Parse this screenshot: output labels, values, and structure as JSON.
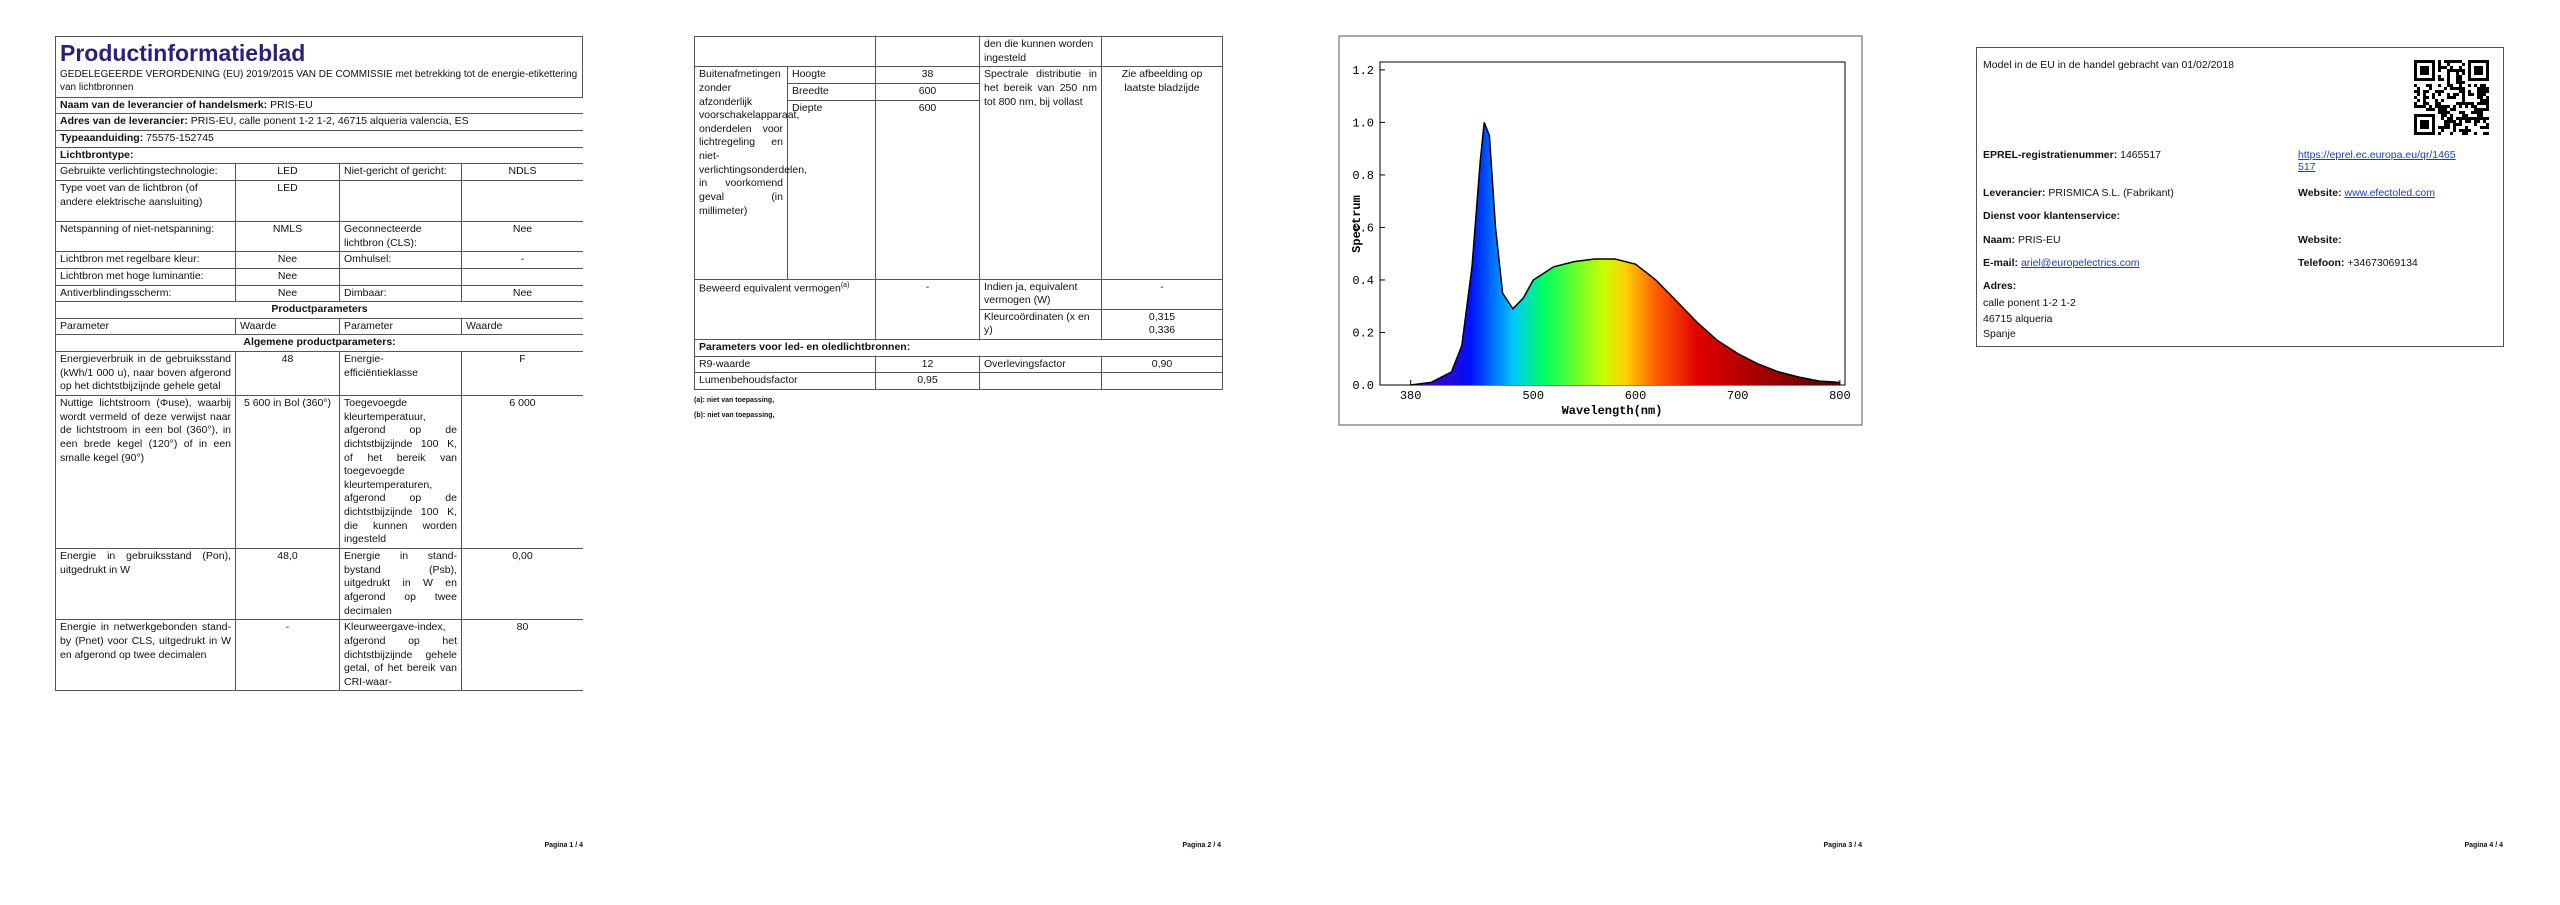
{
  "page1": {
    "title": "Productinformatieblad",
    "regulation": "GEDELEGEERDE VERORDENING (EU) 2019/2015 VAN DE COMMISSIE met betrekking tot de energie-etikettering van lichtbronnen",
    "supplier_label": "Naam van de leverancier of handelsmerk:",
    "supplier": "PRIS-EU",
    "address_label": "Adres van de leverancier:",
    "address": "PRIS-EU, calle ponent 1-2 1-2, 46715 alqueria valencia, ES",
    "model_label": "Typeaanduiding:",
    "model": "75575-152745",
    "light_source_type": "Lichtbrontype:",
    "rows": [
      [
        "Gebruikte verlichtingstechnologie:",
        "LED",
        "Niet-gericht of gericht:",
        "NDLS"
      ],
      [
        "Type voet van de lichtbron (of andere elektrische aansluiting)",
        "LED"
      ],
      [
        "Netspanning of niet-netspanning:",
        "NMLS",
        "Geconnecteerde lichtbron (CLS):",
        "Nee"
      ],
      [
        "Lichtbron met regelbare kleur:",
        "Nee",
        "Omhulsel:",
        "-"
      ],
      [
        "Lichtbron met hoge luminantie:",
        "Nee"
      ],
      [
        "Antiverblindingsscherm:",
        "Nee",
        "Dimbaar:",
        "Nee"
      ]
    ],
    "product_parameters": "Productparameters",
    "header": [
      "Parameter",
      "Waarde",
      "Parameter",
      "Waarde"
    ],
    "general_parameters": "Algemene productparameters:",
    "params": [
      [
        "Energieverbruik in de gebruiksstand (kWh/1 000 u), naar boven afgerond op het dichtstbijzijnde gehele getal",
        "48",
        "Energie-efficiëntieklasse",
        "F"
      ],
      [
        "Nuttige lichtstroom (Φuse), waarbij wordt vermeld of deze verwijst naar de lichtstroom in een bol (360°), in een brede kegel (120°) of in een smalle kegel (90°)",
        "5 600 in Bol (360°)",
        "Toegevoegde kleurtemperatuur, afgerond op de dichtstbijzijnde 100 K, of het bereik van toegevoegde kleurtemperaturen, afgerond op de dichtstbijzijnde 100 K, die kunnen worden ingesteld",
        "6 000"
      ],
      [
        "Energie in gebruiksstand (Pon), uitgedrukt in W",
        "48,0",
        "Energie in stand-bystand (Psb), uitgedrukt in W en afgerond op twee decimalen",
        "0,00"
      ],
      [
        "Energie in netwerkgebonden stand-by (Pnet) voor CLS, uitgedrukt in W en afgerond op twee decimalen",
        "-",
        "Kleurweergave-index, afgerond op het dichtstbijzijnde gehele getal, of het bereik van CRI-waar-",
        "80"
      ]
    ],
    "footer": "Pagina 1 / 4"
  },
  "page2": {
    "continuation": "den die kunnen worden ingesteld",
    "dimensions_label": "Buitenafmetingen zonder afzonderlijk voorschakelapparaat, onderdelen voor lichtregeling en niet-verlichtingsonderdelen, in voorkomend geval (in millimeter)",
    "dimensions": [
      {
        "name": "Hoogte",
        "value": 38
      },
      {
        "name": "Breedte",
        "value": 600
      },
      {
        "name": "Diepte",
        "value": 600
      }
    ],
    "spectral_label": "Spectrale distributie in het bereik van 250 nm tot 800 nm, bij vollast",
    "spectral_value": "Zie afbeelding op laatste bladzijde",
    "equivalent_label": "Beweerd equivalent vermogen",
    "equivalent_note": "(a)",
    "equivalent_value": "-",
    "if_yes_label": "Indien ja, equivalent vermogen (W)",
    "if_yes_value": "-",
    "chromaticity_label": "Kleurcoördinaten (x en y)",
    "chromaticity": [
      "0,315",
      "0,336"
    ],
    "led_header": "Parameters voor led- en oledlichtbronnen:",
    "r9_label": "R9-waarde",
    "r9": 12,
    "survival_label": "Overlevingsfactor",
    "survival": "0,90",
    "lumen_label": "Lumenbehoudsfactor",
    "lumen": "0,95",
    "footnotes": [
      {
        "mark": "(a):",
        "text": "niet van toepassing,"
      },
      {
        "mark": "(b):",
        "text": "niet van toepassing,"
      }
    ],
    "footer": "Pagina 2 / 4"
  },
  "chart_data": {
    "type": "area",
    "x_label": "Wavelength(nm)",
    "y_label": "Spectrum",
    "x": [
      380,
      400,
      420,
      430,
      440,
      448,
      452,
      457,
      463,
      470,
      480,
      490,
      500,
      520,
      540,
      560,
      580,
      600,
      620,
      640,
      660,
      680,
      700,
      720,
      740,
      760,
      780,
      800
    ],
    "values": [
      0,
      0.01,
      0.05,
      0.15,
      0.45,
      0.85,
      1.0,
      0.95,
      0.6,
      0.35,
      0.29,
      0.33,
      0.4,
      0.45,
      0.47,
      0.48,
      0.48,
      0.46,
      0.4,
      0.32,
      0.24,
      0.17,
      0.12,
      0.08,
      0.05,
      0.03,
      0.015,
      0.01
    ],
    "xlim": [
      350,
      805
    ],
    "ylim": [
      0,
      1.23
    ],
    "xticks": [
      380,
      500,
      600,
      700,
      800
    ],
    "yticks": [
      {
        "value": 0,
        "label": "0.0"
      },
      0.2,
      0.4,
      0.6,
      0.8,
      {
        "value": 1,
        "label": "1.0"
      },
      1.2
    ]
  },
  "page3": {
    "footer": "Pagina 3 / 4"
  },
  "page4": {
    "placed_on_market": "Model in de EU in de handel gebracht van 01/02/2018",
    "eprel_label": "EPREL-registratienummer:",
    "eprel": 1465517,
    "eprel_url": "https://eprel.ec.europa.eu/qr/1465517",
    "supplier_label": "Leverancier:",
    "supplier": "PRISMICA S.L. (Fabrikant)",
    "website_label": "Website:",
    "website": "www.efectoled.com",
    "customer_service": "Dienst voor klantenservice:",
    "name_label": "Naam:",
    "name": "PRIS-EU",
    "website2_label": "Website:",
    "email_label": "E-mail:",
    "email": "ariel@europelectrics.com",
    "phone_label": "Telefoon:",
    "phone": "+34673069134",
    "address_label": "Adres:",
    "address": [
      "calle ponent 1-2 1-2",
      "46715 alqueria",
      "Spanje"
    ],
    "footer": "Pagina 4 / 4"
  }
}
